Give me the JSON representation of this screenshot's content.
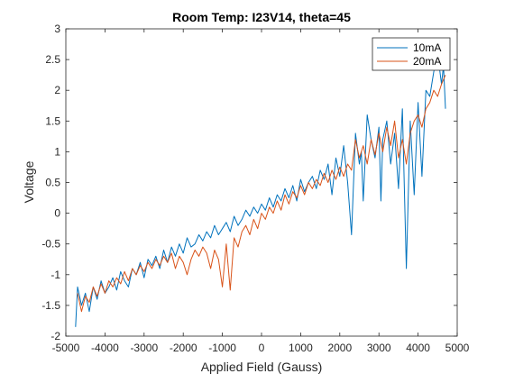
{
  "chart_data": {
    "type": "line",
    "title": "Room Temp: I23V14, theta=45",
    "xlabel": "Applied Field (Gauss)",
    "ylabel": "Voltage",
    "xlim": [
      -5000,
      5000
    ],
    "ylim": [
      -2,
      3
    ],
    "xticks": [
      -5000,
      -4000,
      -3000,
      -2000,
      -1000,
      0,
      1000,
      2000,
      3000,
      4000,
      5000
    ],
    "yticks": [
      -2,
      -1.5,
      -1,
      -0.5,
      0,
      0.5,
      1,
      1.5,
      2,
      2.5,
      3
    ],
    "grid": false,
    "legend_position": "top-right",
    "series": [
      {
        "name": "10mA",
        "color": "#0072BD",
        "x": [
          -4750,
          -4700,
          -4600,
          -4500,
          -4400,
          -4300,
          -4200,
          -4100,
          -4000,
          -3900,
          -3800,
          -3700,
          -3600,
          -3500,
          -3400,
          -3300,
          -3200,
          -3100,
          -3000,
          -2900,
          -2800,
          -2700,
          -2600,
          -2500,
          -2400,
          -2300,
          -2200,
          -2100,
          -2000,
          -1900,
          -1800,
          -1700,
          -1600,
          -1500,
          -1400,
          -1300,
          -1200,
          -1100,
          -1000,
          -900,
          -800,
          -700,
          -600,
          -500,
          -400,
          -300,
          -200,
          -100,
          0,
          100,
          200,
          300,
          400,
          500,
          600,
          700,
          800,
          900,
          1000,
          1100,
          1200,
          1300,
          1400,
          1500,
          1600,
          1700,
          1800,
          1900,
          2000,
          2100,
          2200,
          2300,
          2400,
          2500,
          2550,
          2600,
          2700,
          2800,
          2900,
          3000,
          3050,
          3100,
          3200,
          3300,
          3400,
          3500,
          3600,
          3700,
          3800,
          3900,
          4000,
          4100,
          4200,
          4300,
          4400,
          4500,
          4600,
          4650,
          4700
        ],
        "y": [
          -1.85,
          -1.2,
          -1.5,
          -1.3,
          -1.6,
          -1.2,
          -1.4,
          -1.1,
          -1.3,
          -1.2,
          -1.05,
          -1.25,
          -0.95,
          -1.1,
          -1.2,
          -0.9,
          -1.0,
          -0.8,
          -1.05,
          -0.75,
          -0.85,
          -0.7,
          -0.9,
          -0.6,
          -0.8,
          -0.55,
          -0.7,
          -0.5,
          -0.65,
          -0.4,
          -0.55,
          -0.5,
          -0.35,
          -0.45,
          -0.3,
          -0.4,
          -0.2,
          -0.35,
          -0.25,
          -0.15,
          -0.3,
          -0.05,
          -0.2,
          -0.1,
          0.05,
          -0.05,
          0.1,
          0.0,
          0.15,
          0.05,
          0.25,
          0.1,
          0.3,
          0.2,
          0.4,
          0.25,
          0.45,
          0.2,
          0.55,
          0.35,
          0.5,
          0.6,
          0.4,
          0.7,
          0.55,
          0.8,
          0.3,
          0.9,
          0.6,
          1.1,
          0.5,
          -0.35,
          1.3,
          0.8,
          1.0,
          0.2,
          1.6,
          1.2,
          0.9,
          1.4,
          0.2,
          1.2,
          1.5,
          0.8,
          1.3,
          0.4,
          1.7,
          -0.9,
          1.5,
          0.3,
          1.8,
          0.6,
          2.0,
          1.9,
          2.3,
          2.6,
          2.1,
          2.4,
          1.7
        ]
      },
      {
        "name": "20mA",
        "color": "#D95319",
        "x": [
          -4700,
          -4600,
          -4500,
          -4400,
          -4300,
          -4200,
          -4100,
          -4000,
          -3900,
          -3800,
          -3700,
          -3600,
          -3500,
          -3400,
          -3300,
          -3200,
          -3100,
          -3000,
          -2900,
          -2800,
          -2700,
          -2600,
          -2500,
          -2400,
          -2300,
          -2200,
          -2100,
          -2000,
          -1900,
          -1800,
          -1700,
          -1600,
          -1500,
          -1400,
          -1300,
          -1200,
          -1100,
          -1000,
          -900,
          -800,
          -700,
          -600,
          -500,
          -400,
          -300,
          -200,
          -100,
          0,
          100,
          200,
          300,
          400,
          500,
          600,
          700,
          800,
          900,
          1000,
          1100,
          1200,
          1300,
          1400,
          1500,
          1600,
          1700,
          1800,
          1900,
          2000,
          2100,
          2200,
          2300,
          2400,
          2500,
          2600,
          2700,
          2800,
          2900,
          3000,
          3100,
          3200,
          3300,
          3400,
          3500,
          3600,
          3700,
          3800,
          3900,
          4000,
          4100,
          4200,
          4300,
          4400,
          4500,
          4600,
          4700
        ],
        "y": [
          -1.3,
          -1.6,
          -1.35,
          -1.45,
          -1.2,
          -1.35,
          -1.15,
          -1.3,
          -1.1,
          -1.2,
          -1.05,
          -1.15,
          -0.95,
          -1.1,
          -0.9,
          -1.0,
          -0.85,
          -0.95,
          -0.8,
          -0.9,
          -0.75,
          -0.85,
          -0.7,
          -0.8,
          -0.65,
          -0.9,
          -0.7,
          -0.8,
          -1.0,
          -0.75,
          -0.6,
          -0.7,
          -0.55,
          -0.65,
          -0.9,
          -0.6,
          -0.75,
          -1.2,
          -0.5,
          -1.25,
          -0.4,
          -0.55,
          -0.3,
          -0.2,
          -0.35,
          -0.1,
          -0.25,
          0.0,
          -0.1,
          0.1,
          0.0,
          0.2,
          0.05,
          0.3,
          0.15,
          0.35,
          0.25,
          0.45,
          0.3,
          0.5,
          0.4,
          0.55,
          0.45,
          0.65,
          0.5,
          0.7,
          0.55,
          0.75,
          0.6,
          0.8,
          0.7,
          1.2,
          0.9,
          1.1,
          0.8,
          1.2,
          0.95,
          1.3,
          1.0,
          1.4,
          1.1,
          1.5,
          0.9,
          1.2,
          0.8,
          1.3,
          1.5,
          1.6,
          1.4,
          1.7,
          1.8,
          2.0,
          1.9,
          2.1,
          2.25
        ]
      }
    ]
  }
}
